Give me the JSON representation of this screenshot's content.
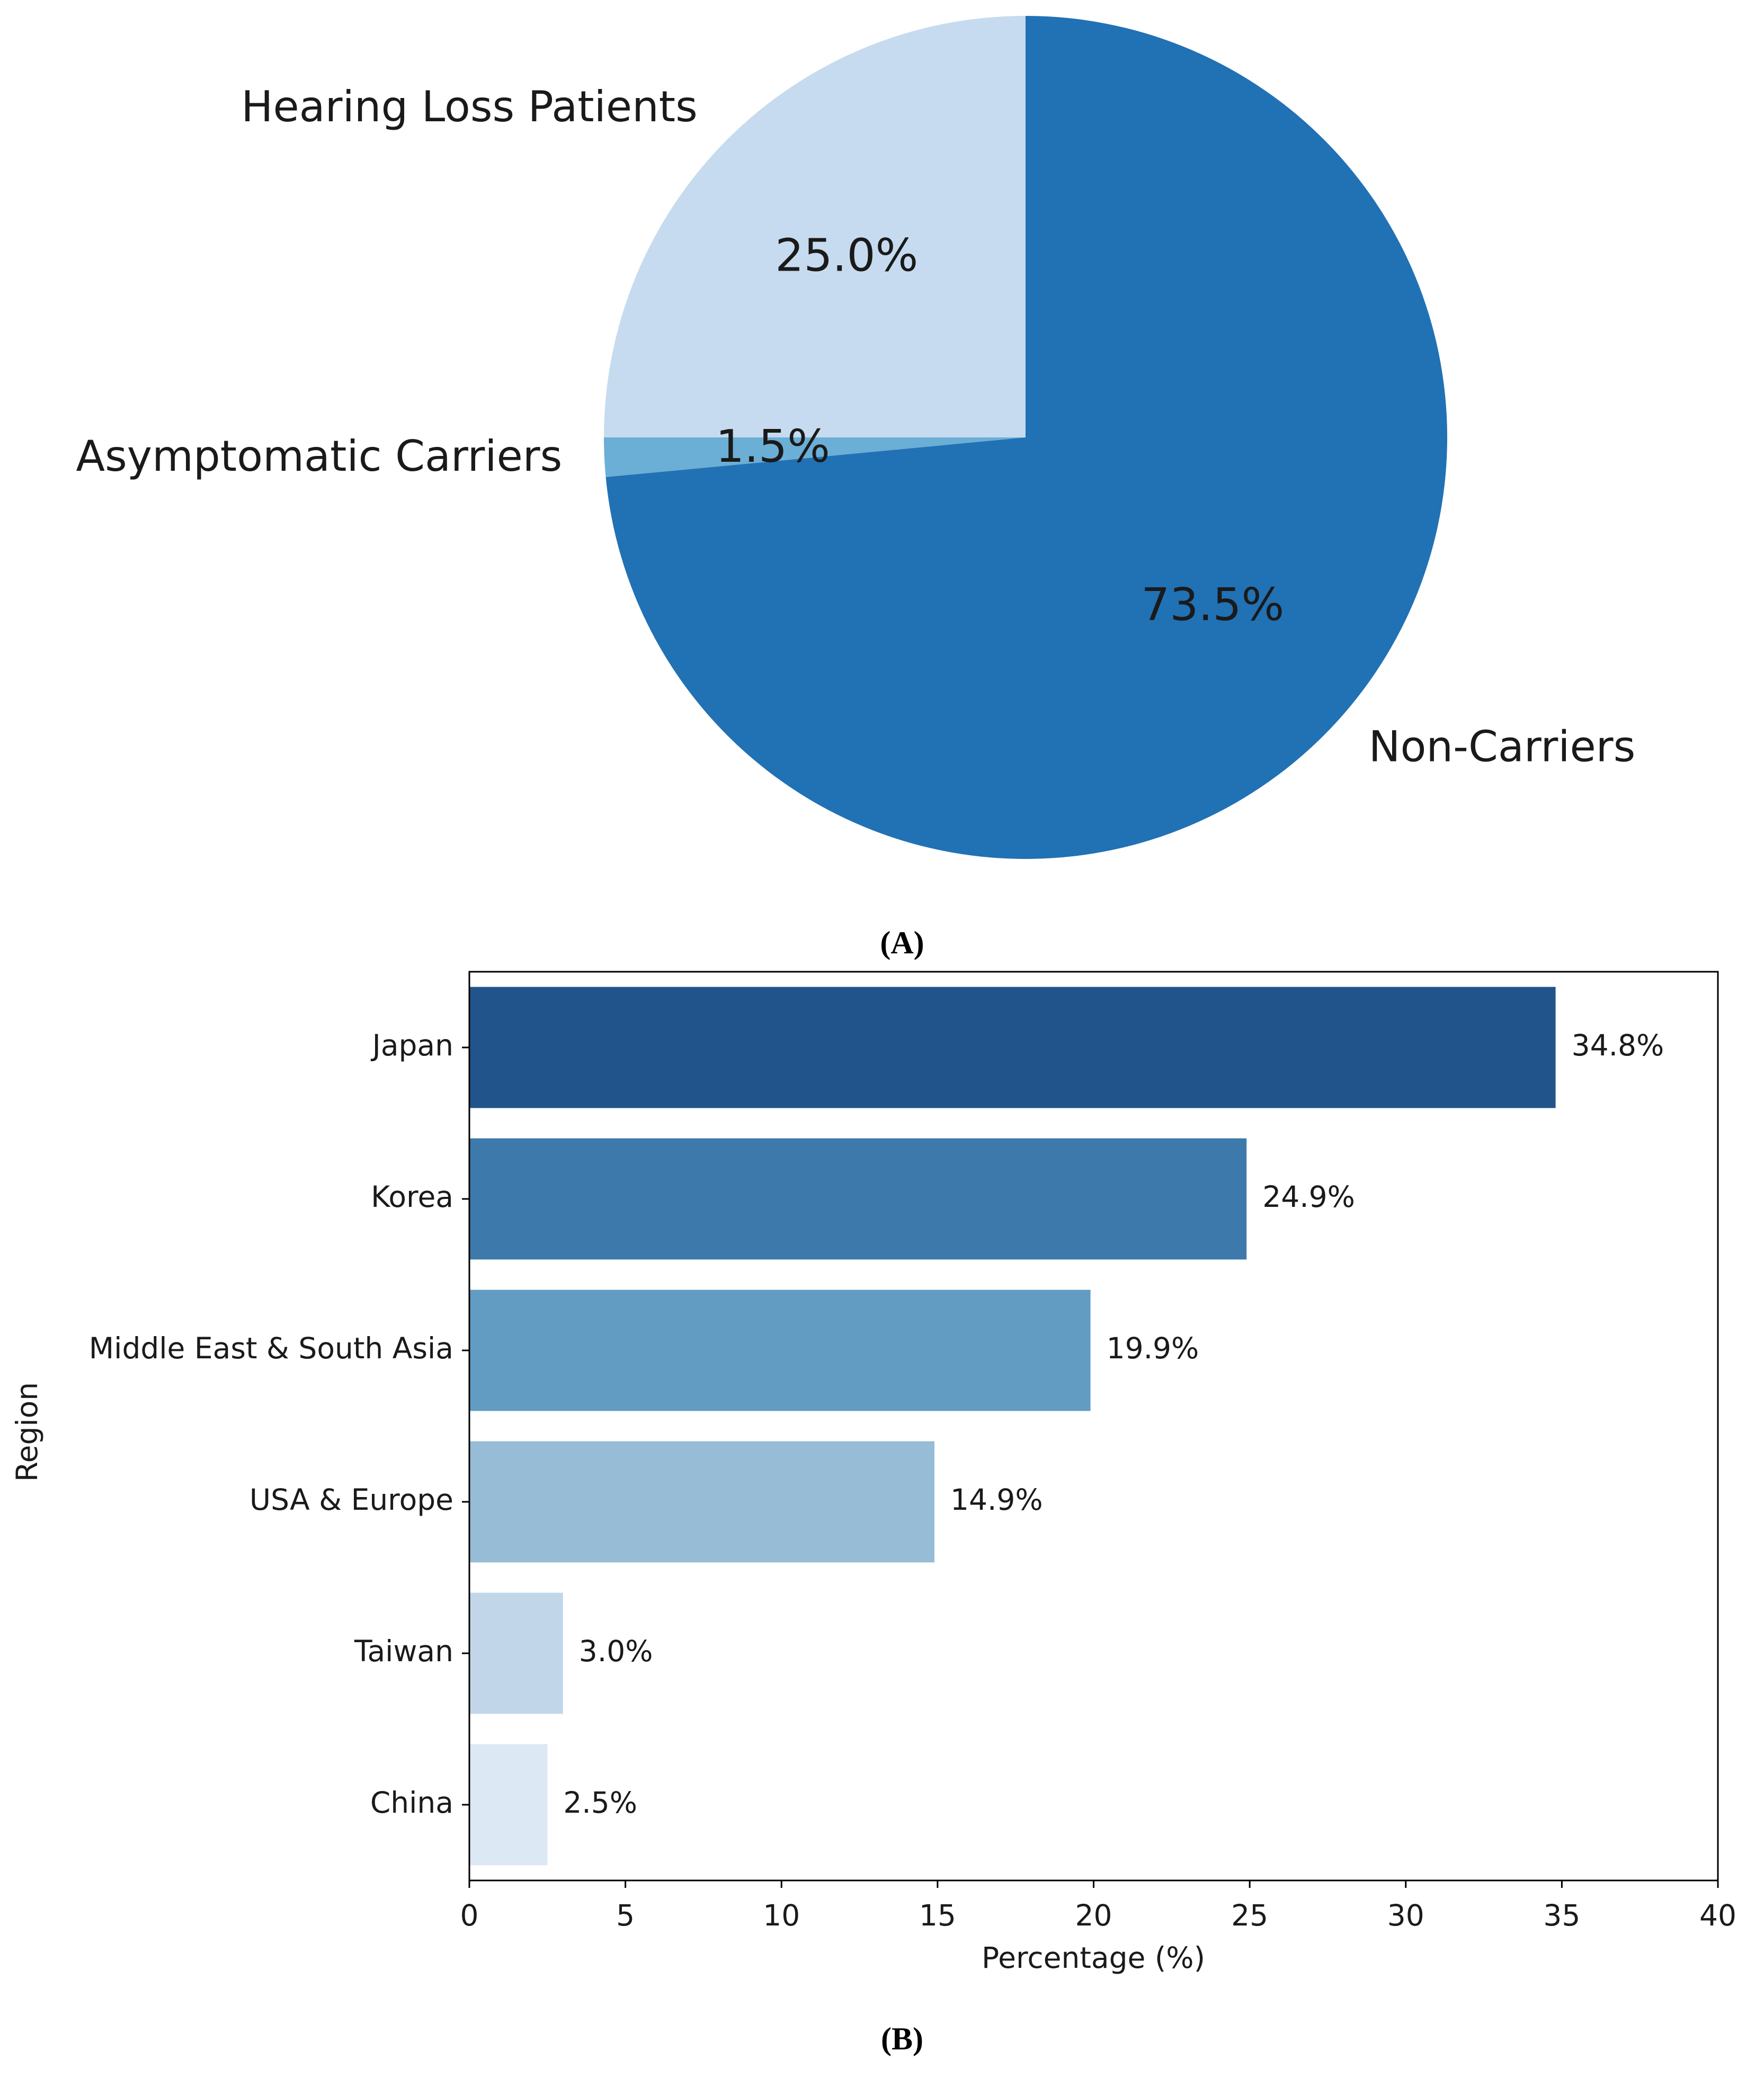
{
  "chart_data": [
    {
      "type": "pie",
      "panel_label": "(A)",
      "categories": [
        "Hearing Loss Patients",
        "Asymptomatic Carriers",
        "Non-Carriers"
      ],
      "values": [
        25.0,
        1.5,
        73.5
      ],
      "value_labels": [
        "25.0%",
        "1.5%",
        "73.5%"
      ],
      "colors": [
        "#c6dbef",
        "#6baed6",
        "#2171b5"
      ],
      "start_angle": 90
    },
    {
      "type": "barh",
      "panel_label": "(B)",
      "categories": [
        "Japan",
        "Korea",
        "Middle East & South Asia",
        "USA & Europe",
        "Taiwan",
        "China"
      ],
      "values": [
        34.8,
        24.9,
        19.9,
        14.9,
        3.0,
        2.5
      ],
      "value_labels": [
        "34.8%",
        "24.9%",
        "19.9%",
        "14.9%",
        "3.0%",
        "2.5%"
      ],
      "colors": [
        "#22548c",
        "#3d7aab",
        "#639cc2",
        "#97bcd6",
        "#c2d6ea",
        "#dce8f4"
      ],
      "xlabel": "Percentage (%)",
      "ylabel": "Region",
      "xlim": [
        0,
        40
      ],
      "xticks": [
        0,
        5,
        10,
        15,
        20,
        25,
        30,
        35,
        40
      ]
    }
  ]
}
